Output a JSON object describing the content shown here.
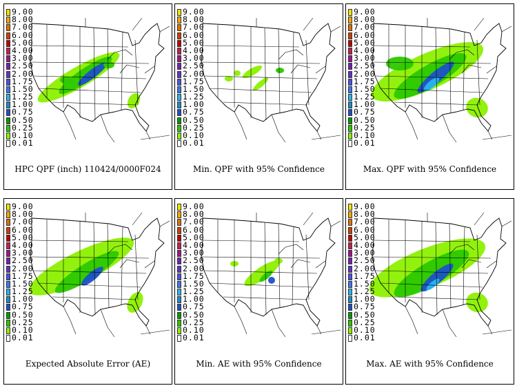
{
  "legend": {
    "levels": [
      "9.00",
      "8.00",
      "7.00",
      "6.00",
      "5.00",
      "4.00",
      "3.00",
      "2.50",
      "2.00",
      "1.75",
      "1.50",
      "1.25",
      "1.00",
      "0.75",
      "0.50",
      "0.25",
      "0.10",
      "0.01"
    ],
    "colors": [
      "#f5e000",
      "#f0a800",
      "#e07000",
      "#d04000",
      "#c00000",
      "#c81e50",
      "#a0148c",
      "#7a1eb4",
      "#6432c8",
      "#5050e6",
      "#3c78f0",
      "#28b4f0",
      "#1e8cc8",
      "#1e50c8",
      "#009a00",
      "#2cc800",
      "#8cf000",
      "#ffffff"
    ]
  },
  "panels": [
    {
      "title": "HPC QPF (inch) 110424/0000F024"
    },
    {
      "title": "Min. QPF with 95% Confidence"
    },
    {
      "title": "Max. QPF with 95% Confidence"
    },
    {
      "title": "Expected Absolute Error (AE)"
    },
    {
      "title": "Min. AE with 95% Confidence"
    },
    {
      "title": "Max. AE with 95% Confidence"
    }
  ]
}
